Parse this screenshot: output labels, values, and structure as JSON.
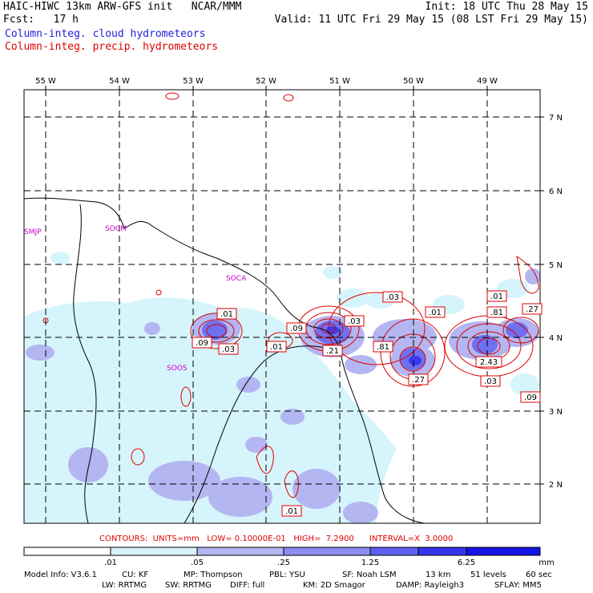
{
  "header": {
    "title": "HAIC-HIWC 13km ARW-GFS init   NCAR/MMM",
    "init": "Init: 18 UTC Thu 28 May 15",
    "fcst": "Fcst:   17 h",
    "valid": "Valid: 11 UTC Fri 29 May 15 (08 LST Fri 29 May 15)",
    "legend_cloud": "Column-integ. cloud hydrometeors",
    "legend_precip": "Column-integ. precip. hydrometeors",
    "legend_cloud_color": "#2222dd",
    "legend_precip_color": "#dd0000"
  },
  "map": {
    "lon_labels": [
      "55 W",
      "54 W",
      "53 W",
      "52 W",
      "51 W",
      "50 W",
      "49 W"
    ],
    "lat_labels": [
      "7 N",
      "6 N",
      "5 N",
      "4 N",
      "3 N",
      "2 N"
    ],
    "stations": [
      "SMJP",
      "SOCM",
      "SOCA",
      "SOOS"
    ],
    "contour_labels": [
      ".01",
      ".09",
      ".03",
      ".01",
      ".09",
      ".21",
      ".03",
      ".03",
      ".81",
      ".01",
      ".27",
      ".01",
      ".81",
      ".27",
      "2.43",
      ".03",
      ".09",
      ".01"
    ],
    "contour_color": "#dd0000",
    "station_color": "#cc00cc"
  },
  "contours_info": "CONTOURS:  UNITS=mm   LOW= 0.10000E-01   HIGH=  7.2900      INTERVAL=X  3.0000",
  "colorbar": {
    "ticks": [
      ".01",
      ".05",
      ".25",
      "1.25",
      "6.25"
    ],
    "unit": "mm",
    "colors": [
      "#ffffff",
      "#d6f4fb",
      "#b3b6f1",
      "#8c8ef0",
      "#5e5ff0",
      "#3434ee",
      "#1515e6"
    ]
  },
  "model_info": {
    "line1": [
      "Model Info: V3.6.1",
      "CU: KF",
      "MP: Thompson",
      "PBL: YSU",
      "SF: Noah LSM",
      "13 km",
      "51 levels",
      "60 sec"
    ],
    "line2": [
      "LW: RRTMG",
      "SW: RRTMG",
      "DIFF: full",
      "KM: 2D Smagor",
      "DAMP: Rayleigh3",
      "SFLAY: MM5"
    ]
  }
}
